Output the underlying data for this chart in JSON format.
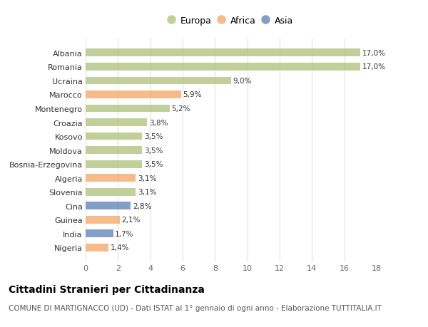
{
  "categories": [
    "Albania",
    "Romania",
    "Ucraina",
    "Marocco",
    "Montenegro",
    "Croazia",
    "Kosovo",
    "Moldova",
    "Bosnia-Erzegovina",
    "Algeria",
    "Slovenia",
    "Cina",
    "Guinea",
    "India",
    "Nigeria"
  ],
  "values": [
    17.0,
    17.0,
    9.0,
    5.9,
    5.2,
    3.8,
    3.5,
    3.5,
    3.5,
    3.1,
    3.1,
    2.8,
    2.1,
    1.7,
    1.4
  ],
  "labels": [
    "17,0%",
    "17,0%",
    "9,0%",
    "5,9%",
    "5,2%",
    "3,8%",
    "3,5%",
    "3,5%",
    "3,5%",
    "3,1%",
    "3,1%",
    "2,8%",
    "2,1%",
    "1,7%",
    "1,4%"
  ],
  "continents": [
    "Europa",
    "Europa",
    "Europa",
    "Africa",
    "Europa",
    "Europa",
    "Europa",
    "Europa",
    "Europa",
    "Africa",
    "Europa",
    "Asia",
    "Africa",
    "Asia",
    "Africa"
  ],
  "colors": {
    "Europa": "#adc178",
    "Africa": "#f4a460",
    "Asia": "#5b7fb5"
  },
  "xlim": [
    0,
    18
  ],
  "xticks": [
    0,
    2,
    4,
    6,
    8,
    10,
    12,
    14,
    16,
    18
  ],
  "title": "Cittadini Stranieri per Cittadinanza",
  "subtitle": "COMUNE DI MARTIGNACCO (UD) - Dati ISTAT al 1° gennaio di ogni anno - Elaborazione TUTTITALIA.IT",
  "background_color": "#ffffff",
  "bar_height": 0.55,
  "grid_color": "#e0e0e0",
  "text_color": "#333333",
  "title_fontsize": 10,
  "subtitle_fontsize": 7.5,
  "label_fontsize": 7.5,
  "tick_fontsize": 8
}
